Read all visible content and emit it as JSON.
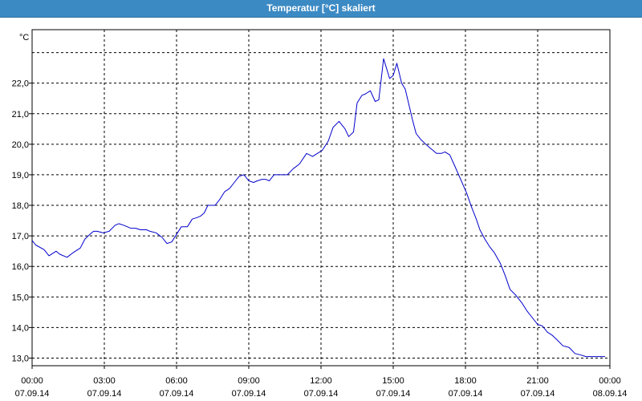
{
  "window": {
    "title": "Temperatur [°C] skaliert"
  },
  "chart_data": {
    "type": "line",
    "title": "Temperatur [°C] skaliert",
    "ylabel": "°C",
    "xlabel": "",
    "xlim": [
      0,
      24
    ],
    "ylim": [
      12.75,
      23.75
    ],
    "grid": true,
    "legend": "none",
    "line_color": "#0000cc",
    "y_ticks": [
      "13,0",
      "14,0",
      "15,0",
      "16,0",
      "17,0",
      "18,0",
      "19,0",
      "20,0",
      "21,0",
      "22,0"
    ],
    "y_tick_values": [
      13,
      14,
      15,
      16,
      17,
      18,
      19,
      20,
      21,
      22
    ],
    "x_ticks": [
      {
        "time": "00:00",
        "date": "07.09.14"
      },
      {
        "time": "03:00",
        "date": "07.09.14"
      },
      {
        "time": "06:00",
        "date": "07.09.14"
      },
      {
        "time": "09:00",
        "date": "07.09.14"
      },
      {
        "time": "12:00",
        "date": "07.09.14"
      },
      {
        "time": "15:00",
        "date": "07.09.14"
      },
      {
        "time": "18:00",
        "date": "07.09.14"
      },
      {
        "time": "21:00",
        "date": "07.09.14"
      },
      {
        "time": "00:00",
        "date": "08.09.14"
      }
    ],
    "x_tick_values": [
      0,
      3,
      6,
      9,
      12,
      15,
      18,
      21,
      24
    ],
    "series": [
      {
        "x": [
          0,
          0.15,
          0.5,
          0.7,
          1.0,
          1.15,
          1.45,
          1.7,
          2.0,
          2.2,
          2.4,
          2.55,
          2.7,
          2.95,
          3.2,
          3.45,
          3.6,
          3.8,
          4.1,
          4.3,
          4.5,
          4.75,
          4.9,
          5.15,
          5.4,
          5.6,
          5.8,
          6.0,
          6.2,
          6.45,
          6.65,
          6.85,
          7.0,
          7.15,
          7.3,
          7.6,
          7.8,
          8.0,
          8.2,
          8.4,
          8.6,
          8.8,
          9.0,
          9.2,
          9.35,
          9.55,
          9.7,
          9.85,
          10.05,
          10.3,
          10.6,
          10.85,
          11.1,
          11.4,
          11.65,
          11.85,
          12.05,
          12.3,
          12.5,
          12.75,
          13.0,
          13.15,
          13.35,
          13.5,
          13.7,
          13.85,
          14.05,
          14.25,
          14.4,
          14.6,
          14.85,
          15.0,
          15.15,
          15.35,
          15.5,
          15.65,
          15.8,
          15.95,
          16.15,
          16.35,
          16.5,
          16.65,
          16.8,
          17.0,
          17.15,
          17.35,
          17.55,
          17.8,
          18.05,
          18.25,
          18.45,
          18.6,
          18.8,
          19.0,
          19.2,
          19.45,
          19.65,
          19.85,
          20.1,
          20.35,
          20.55,
          20.8,
          21.0,
          21.2,
          21.4,
          21.6,
          21.8,
          22.05,
          22.3,
          22.55,
          22.8,
          23.0,
          23.2,
          23.45,
          23.6,
          23.8
        ],
        "values": [
          16.85,
          16.7,
          16.55,
          16.35,
          16.5,
          16.4,
          16.3,
          16.45,
          16.6,
          16.9,
          17.05,
          17.15,
          17.15,
          17.1,
          17.15,
          17.35,
          17.4,
          17.35,
          17.25,
          17.25,
          17.2,
          17.2,
          17.15,
          17.1,
          16.95,
          16.75,
          16.8,
          17.05,
          17.3,
          17.3,
          17.55,
          17.6,
          17.65,
          17.75,
          18.0,
          18.0,
          18.2,
          18.45,
          18.55,
          18.75,
          18.95,
          19.0,
          18.8,
          18.75,
          18.8,
          18.85,
          18.85,
          18.8,
          19.0,
          19.0,
          19.0,
          19.2,
          19.35,
          19.7,
          19.6,
          19.7,
          19.8,
          20.1,
          20.55,
          20.75,
          20.5,
          20.25,
          20.4,
          21.35,
          21.6,
          21.65,
          21.75,
          21.4,
          21.45,
          22.8,
          22.15,
          22.25,
          22.65,
          22.0,
          21.8,
          21.3,
          20.8,
          20.35,
          20.15,
          20.0,
          19.9,
          19.8,
          19.7,
          19.7,
          19.75,
          19.65,
          19.3,
          18.85,
          18.4,
          17.95,
          17.55,
          17.2,
          16.9,
          16.65,
          16.45,
          16.1,
          15.7,
          15.25,
          15.05,
          14.8,
          14.55,
          14.3,
          14.1,
          14.05,
          13.85,
          13.75,
          13.6,
          13.4,
          13.35,
          13.15,
          13.1,
          13.05,
          13.05,
          13.05,
          13.05,
          13.05
        ]
      }
    ]
  }
}
